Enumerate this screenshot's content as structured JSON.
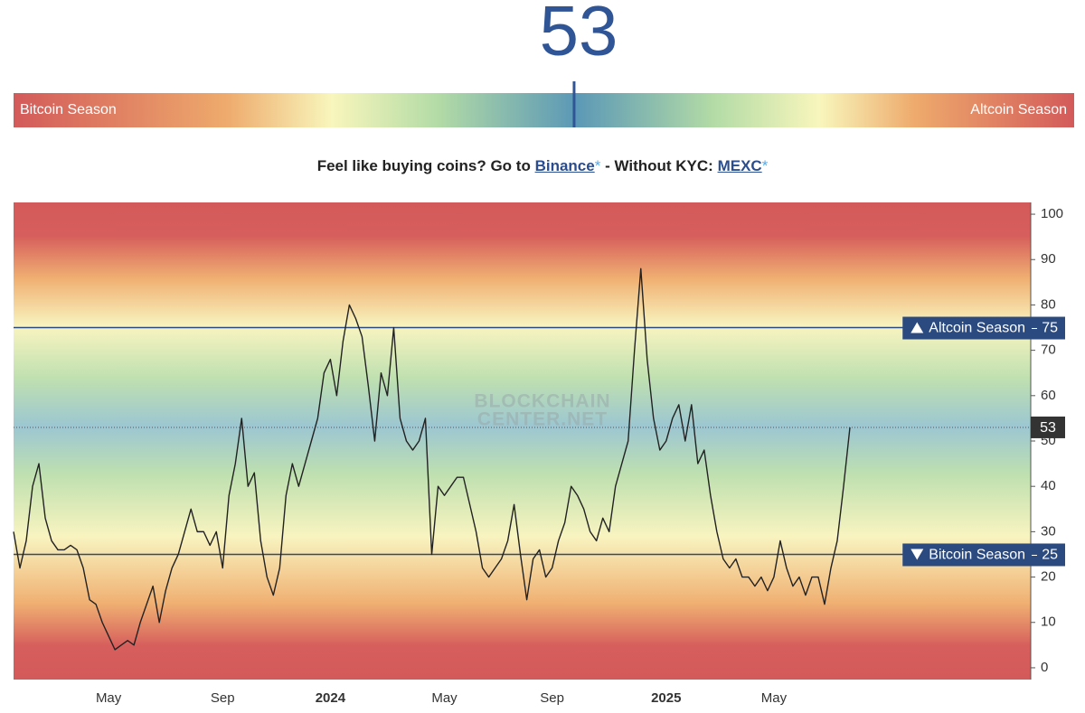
{
  "gauge": {
    "value": 53,
    "left_label": "Bitcoin Season",
    "right_label": "Altcoin Season"
  },
  "promo": {
    "prefix": "Feel like buying coins? Go to",
    "link1": "Binance",
    "asterisk": "*",
    "middle": "- Without KYC:",
    "link2": "MEXC"
  },
  "watermark": [
    "BLOCKCHAIN",
    "CENTER.NET"
  ],
  "chart_data": {
    "type": "line",
    "categories": [
      null,
      null,
      null,
      null,
      null,
      null,
      null,
      null,
      null,
      null,
      null,
      null,
      null,
      null,
      null,
      "May",
      null,
      null,
      null,
      null,
      null,
      null,
      null,
      null,
      null,
      null,
      null,
      null,
      null,
      null,
      null,
      null,
      null,
      "Sep",
      null,
      null,
      null,
      null,
      null,
      null,
      null,
      null,
      null,
      null,
      null,
      null,
      null,
      null,
      null,
      null,
      "2024",
      null,
      null,
      null,
      null,
      null,
      null,
      null,
      null,
      null,
      null,
      null,
      null,
      null,
      null,
      null,
      null,
      null,
      "May",
      null,
      null,
      null,
      null,
      null,
      null,
      null,
      null,
      null,
      null,
      null,
      null,
      null,
      null,
      null,
      null,
      "Sep",
      null,
      null,
      null,
      null,
      null,
      null,
      null,
      null,
      null,
      null,
      null,
      null,
      null,
      null,
      null,
      null,
      null,
      "2025",
      null,
      null,
      null,
      null,
      null,
      null,
      null,
      null,
      null,
      null,
      null,
      null,
      null,
      null,
      null,
      null,
      "May",
      null,
      null,
      null,
      null,
      null,
      null,
      null,
      null,
      null,
      null,
      null,
      null
    ],
    "values": [
      30,
      22,
      28,
      40,
      45,
      33,
      28,
      26,
      26,
      27,
      26,
      22,
      15,
      14,
      10,
      7,
      4,
      5,
      6,
      5,
      10,
      14,
      18,
      10,
      17,
      22,
      25,
      30,
      35,
      30,
      30,
      27,
      30,
      22,
      38,
      45,
      55,
      40,
      43,
      28,
      20,
      16,
      22,
      38,
      45,
      40,
      45,
      50,
      55,
      65,
      68,
      60,
      72,
      80,
      77,
      73,
      62,
      50,
      65,
      60,
      75,
      55,
      50,
      48,
      50,
      55,
      25,
      40,
      38,
      40,
      42,
      42,
      36,
      30,
      22,
      20,
      22,
      24,
      28,
      36,
      25,
      15,
      24,
      26,
      20,
      22,
      28,
      32,
      40,
      38,
      35,
      30,
      28,
      33,
      30,
      40,
      45,
      50,
      70,
      88,
      68,
      55,
      48,
      50,
      55,
      58,
      50,
      58,
      45,
      48,
      38,
      30,
      24,
      22,
      24,
      20,
      20,
      18,
      20,
      17,
      20,
      28,
      22,
      18,
      20,
      16,
      20,
      20,
      14,
      22,
      28,
      40,
      53
    ],
    "color": "#222222",
    "ylim": [
      -2.6,
      102.6
    ],
    "yticks": [
      0,
      10,
      20,
      30,
      40,
      50,
      60,
      70,
      80,
      90,
      100
    ],
    "reference_lines": [
      {
        "label": "Altcoin Season",
        "value": 75,
        "direction": "up"
      },
      {
        "label": "Bitcoin Season",
        "value": 25,
        "direction": "down"
      }
    ]
  }
}
